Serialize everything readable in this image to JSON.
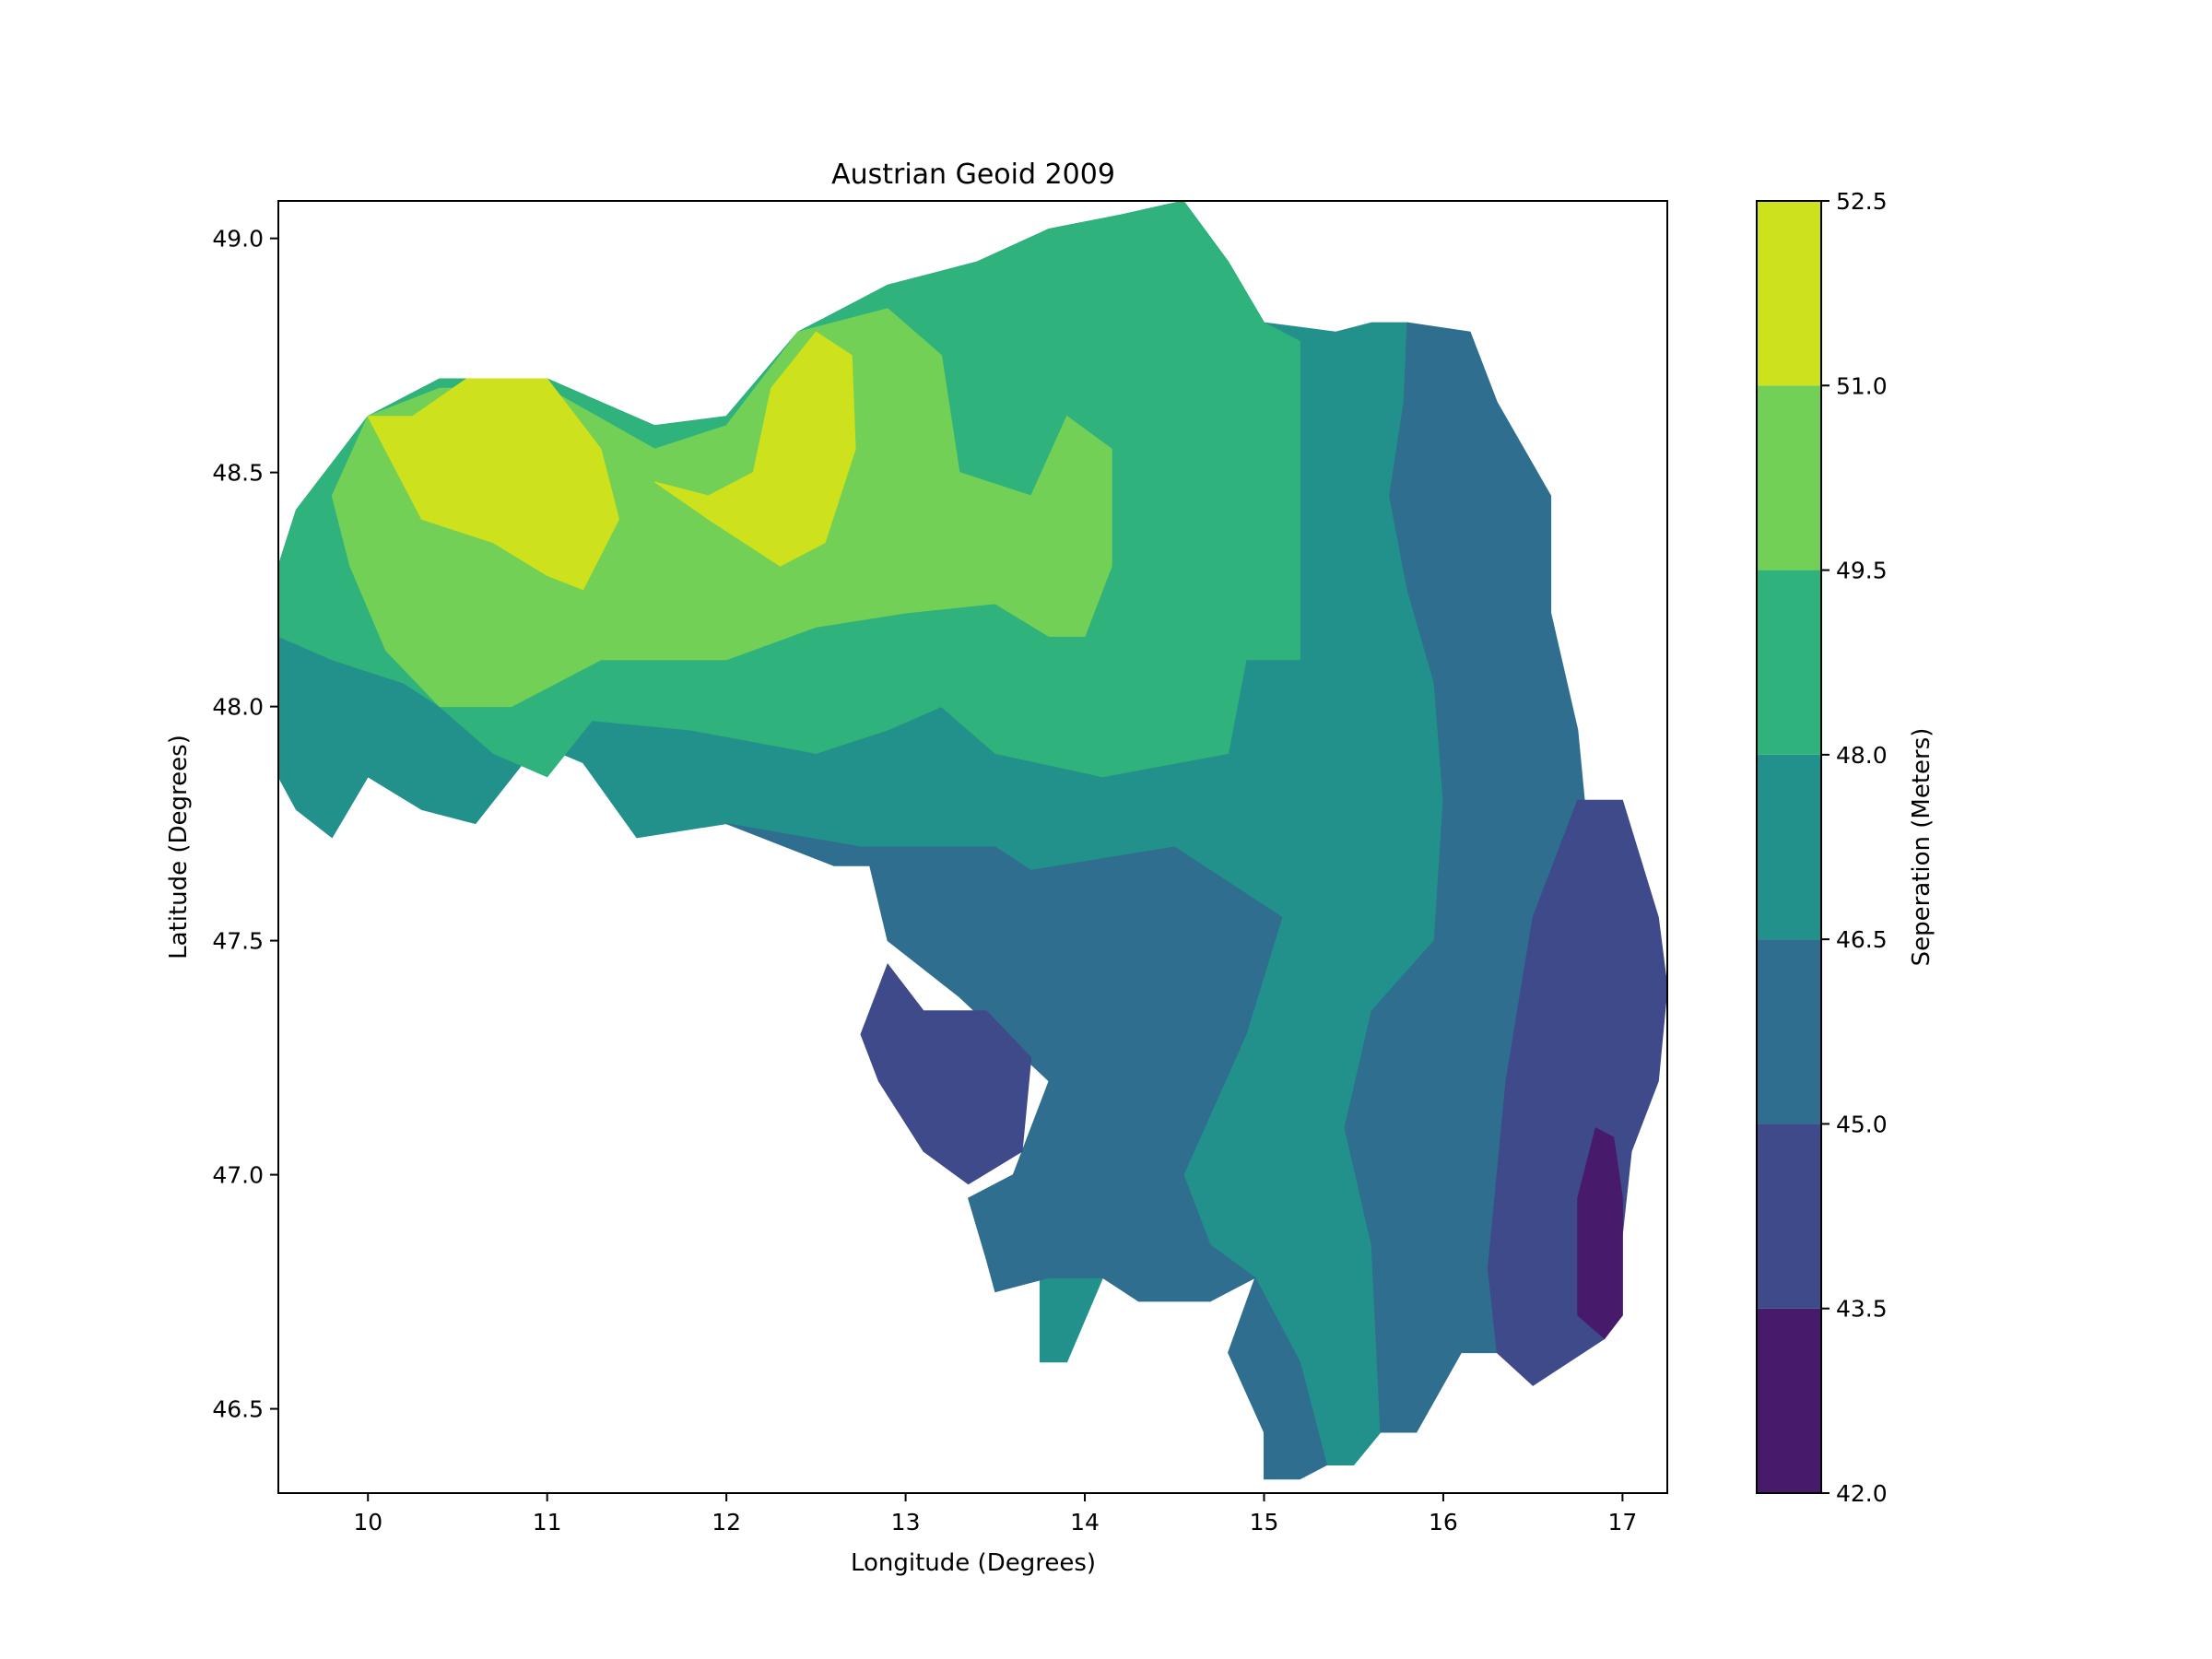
{
  "chart_data": {
    "type": "heatmap",
    "subtype": "filled-contour",
    "title": "Austrian Geoid 2009",
    "xlabel": "Longitude (Degrees)",
    "ylabel": "Latitude (Degrees)",
    "xlim": [
      9.5,
      17.25
    ],
    "ylim": [
      46.32,
      49.08
    ],
    "xticks": [
      "10",
      "11",
      "12",
      "13",
      "14",
      "15",
      "16",
      "17"
    ],
    "yticks": [
      "46.5",
      "47.0",
      "47.5",
      "48.0",
      "48.5",
      "49.0"
    ],
    "grid": false,
    "colorbar": {
      "label": "Seperation (Meters)",
      "ticks": [
        "42.0",
        "43.5",
        "45.0",
        "46.5",
        "48.0",
        "49.5",
        "51.0",
        "52.5"
      ],
      "levels": [
        42.0,
        43.5,
        45.0,
        46.5,
        48.0,
        49.5,
        51.0,
        52.5
      ],
      "colors": [
        "#481a6c",
        "#3e4a89",
        "#2f6e8e",
        "#23918b",
        "#2fb27b",
        "#73d056",
        "#cde11d"
      ]
    },
    "bands": [
      {
        "range": [
          46.5,
          48.0
        ],
        "color": "#23918b",
        "polygons": [
          [
            [
              9.5,
              48.3
            ],
            [
              9.6,
              48.42
            ],
            [
              9.8,
              48.52
            ],
            [
              10,
              48.62
            ],
            [
              10.4,
              48.7
            ],
            [
              11,
              48.7
            ],
            [
              11.6,
              48.6
            ],
            [
              12.0,
              48.62
            ],
            [
              12.4,
              48.8
            ],
            [
              12.9,
              48.9
            ],
            [
              13.4,
              48.95
            ],
            [
              13.8,
              49.02
            ],
            [
              14.2,
              49.05
            ],
            [
              14.55,
              49.08
            ],
            [
              14.8,
              48.95
            ],
            [
              15.0,
              48.82
            ],
            [
              15.4,
              48.8
            ],
            [
              15.6,
              48.82
            ],
            [
              15.8,
              48.82
            ],
            [
              15.78,
              48.65
            ],
            [
              15.7,
              48.45
            ],
            [
              15.8,
              48.25
            ],
            [
              15.95,
              48.05
            ],
            [
              16.0,
              47.8
            ],
            [
              15.95,
              47.5
            ],
            [
              15.6,
              47.35
            ],
            [
              15.45,
              47.1
            ],
            [
              15.6,
              46.85
            ],
            [
              15.65,
              46.45
            ],
            [
              15.5,
              46.38
            ],
            [
              15.35,
              46.38
            ],
            [
              15.2,
              46.6
            ],
            [
              14.95,
              46.78
            ],
            [
              14.7,
              46.73
            ],
            [
              14.3,
              46.73
            ],
            [
              14.1,
              46.78
            ],
            [
              13.9,
              46.6
            ],
            [
              13.75,
              46.6
            ],
            [
              13.75,
              46.78
            ],
            [
              13.95,
              46.85
            ],
            [
              14.3,
              46.85
            ],
            [
              14.55,
              47.0
            ],
            [
              14.9,
              47.3
            ],
            [
              15.1,
              47.55
            ],
            [
              14.5,
              47.7
            ],
            [
              13.7,
              47.65
            ],
            [
              13.5,
              47.7
            ],
            [
              12.75,
              47.7
            ],
            [
              12.0,
              47.75
            ],
            [
              11.5,
              47.72
            ],
            [
              11.2,
              47.88
            ],
            [
              10.95,
              47.92
            ],
            [
              10.6,
              47.75
            ],
            [
              10.3,
              47.78
            ],
            [
              10.0,
              47.85
            ],
            [
              9.8,
              47.72
            ],
            [
              9.6,
              47.78
            ],
            [
              9.5,
              47.85
            ]
          ]
        ]
      },
      {
        "range": [
          45.0,
          46.5
        ],
        "color": "#2f6e8e",
        "polygons": [
          [
            [
              15.8,
              48.82
            ],
            [
              16.15,
              48.8
            ],
            [
              16.3,
              48.65
            ],
            [
              16.6,
              48.45
            ],
            [
              16.6,
              48.2
            ],
            [
              16.75,
              47.95
            ],
            [
              16.8,
              47.75
            ],
            [
              16.5,
              47.55
            ],
            [
              16.35,
              47.2
            ],
            [
              16.25,
              46.8
            ],
            [
              16.3,
              46.62
            ],
            [
              16.1,
              46.62
            ],
            [
              15.85,
              46.45
            ],
            [
              15.65,
              46.45
            ],
            [
              15.6,
              46.85
            ],
            [
              15.45,
              47.1
            ],
            [
              15.6,
              47.35
            ],
            [
              15.95,
              47.5
            ],
            [
              16.0,
              47.8
            ],
            [
              15.95,
              48.05
            ],
            [
              15.8,
              48.25
            ],
            [
              15.7,
              48.45
            ],
            [
              15.78,
              48.65
            ]
          ],
          [
            [
              12.0,
              47.75
            ],
            [
              12.6,
              47.66
            ],
            [
              12.8,
              47.66
            ],
            [
              12.9,
              47.5
            ],
            [
              13.3,
              47.38
            ],
            [
              13.8,
              47.2
            ],
            [
              13.6,
              47.0
            ],
            [
              13.35,
              46.95
            ],
            [
              13.45,
              46.82
            ],
            [
              13.5,
              46.75
            ],
            [
              13.8,
              46.78
            ],
            [
              14.1,
              46.78
            ],
            [
              14.3,
              46.73
            ],
            [
              14.7,
              46.73
            ],
            [
              14.95,
              46.78
            ],
            [
              14.8,
              46.62
            ],
            [
              15.0,
              46.45
            ],
            [
              15.0,
              46.35
            ],
            [
              15.2,
              46.35
            ],
            [
              15.35,
              46.38
            ],
            [
              15.2,
              46.6
            ],
            [
              14.95,
              46.78
            ],
            [
              14.7,
              46.85
            ],
            [
              14.55,
              47.0
            ],
            [
              14.9,
              47.3
            ],
            [
              15.1,
              47.55
            ],
            [
              14.5,
              47.7
            ],
            [
              13.7,
              47.65
            ],
            [
              13.5,
              47.7
            ],
            [
              12.75,
              47.7
            ]
          ]
        ]
      },
      {
        "range": [
          43.5,
          45.0
        ],
        "color": "#3e4a89",
        "polygons": [
          [
            [
              16.75,
              47.8
            ],
            [
              17.0,
              47.8
            ],
            [
              17.2,
              47.55
            ],
            [
              17.25,
              47.4
            ],
            [
              17.2,
              47.2
            ],
            [
              17.05,
              47.05
            ],
            [
              16.95,
              46.7
            ],
            [
              16.9,
              46.65
            ],
            [
              16.5,
              46.55
            ],
            [
              16.3,
              46.62
            ],
            [
              16.25,
              46.8
            ],
            [
              16.35,
              47.2
            ],
            [
              16.5,
              47.55
            ]
          ],
          [
            [
              12.9,
              47.45
            ],
            [
              13.1,
              47.35
            ],
            [
              13.45,
              47.35
            ],
            [
              13.7,
              47.25
            ],
            [
              13.65,
              47.05
            ],
            [
              13.35,
              46.98
            ],
            [
              13.1,
              47.05
            ],
            [
              12.85,
              47.2
            ],
            [
              12.75,
              47.3
            ]
          ]
        ]
      },
      {
        "range": [
          42.0,
          43.5
        ],
        "color": "#481a6c",
        "polygons": [
          [
            [
              16.85,
              47.1
            ],
            [
              16.95,
              47.08
            ],
            [
              17.0,
              46.95
            ],
            [
              17.0,
              46.7
            ],
            [
              16.9,
              46.65
            ],
            [
              16.75,
              46.7
            ],
            [
              16.75,
              46.95
            ]
          ]
        ]
      },
      {
        "range": [
          48.0,
          49.5
        ],
        "color": "#2fb27b",
        "polygons": [
          [
            [
              9.5,
              48.3
            ],
            [
              9.6,
              48.42
            ],
            [
              9.8,
              48.52
            ],
            [
              10,
              48.62
            ],
            [
              10.4,
              48.7
            ],
            [
              11,
              48.7
            ],
            [
              11.6,
              48.6
            ],
            [
              12.0,
              48.62
            ],
            [
              12.4,
              48.8
            ],
            [
              12.9,
              48.9
            ],
            [
              13.4,
              48.95
            ],
            [
              13.8,
              49.02
            ],
            [
              14.2,
              49.05
            ],
            [
              14.55,
              49.08
            ],
            [
              14.8,
              48.95
            ],
            [
              15.0,
              48.82
            ],
            [
              15.2,
              48.78
            ],
            [
              15.2,
              48.55
            ],
            [
              15.2,
              48.3
            ],
            [
              15.2,
              48.1
            ],
            [
              14.9,
              48.1
            ],
            [
              14.8,
              47.9
            ],
            [
              14.1,
              47.85
            ],
            [
              13.5,
              47.9
            ],
            [
              13.2,
              48.0
            ],
            [
              12.9,
              47.95
            ],
            [
              12.5,
              47.9
            ],
            [
              11.8,
              47.95
            ],
            [
              11.25,
              47.97
            ],
            [
              11.0,
              47.85
            ],
            [
              10.7,
              47.9
            ],
            [
              10.4,
              48.0
            ],
            [
              10.2,
              48.05
            ],
            [
              9.8,
              48.1
            ],
            [
              9.5,
              48.15
            ]
          ]
        ]
      },
      {
        "range": [
          49.5,
          51.0
        ],
        "color": "#73d056",
        "polygons": [
          [
            [
              9.8,
              48.45
            ],
            [
              10.0,
              48.62
            ],
            [
              10.4,
              48.68
            ],
            [
              11.0,
              48.68
            ],
            [
              11.6,
              48.55
            ],
            [
              12.0,
              48.6
            ],
            [
              12.4,
              48.8
            ],
            [
              12.9,
              48.85
            ],
            [
              13.2,
              48.75
            ],
            [
              13.3,
              48.5
            ],
            [
              13.7,
              48.45
            ],
            [
              13.9,
              48.62
            ],
            [
              14.15,
              48.55
            ],
            [
              14.15,
              48.3
            ],
            [
              14.0,
              48.15
            ],
            [
              13.8,
              48.15
            ],
            [
              13.5,
              48.22
            ],
            [
              13.0,
              48.2
            ],
            [
              12.5,
              48.17
            ],
            [
              12.0,
              48.1
            ],
            [
              11.3,
              48.1
            ],
            [
              10.8,
              48.0
            ],
            [
              10.4,
              48.0
            ],
            [
              10.1,
              48.12
            ],
            [
              9.9,
              48.3
            ]
          ]
        ]
      },
      {
        "range": [
          51.0,
          52.5
        ],
        "color": "#cde11d",
        "polygons": [
          [
            [
              10.0,
              48.62
            ],
            [
              10.25,
              48.62
            ],
            [
              10.55,
              48.7
            ],
            [
              11.0,
              48.7
            ],
            [
              11.3,
              48.55
            ],
            [
              11.4,
              48.4
            ],
            [
              11.2,
              48.25
            ],
            [
              11.0,
              48.28
            ],
            [
              10.7,
              48.35
            ],
            [
              10.3,
              48.4
            ]
          ],
          [
            [
              11.6,
              48.48
            ],
            [
              11.9,
              48.45
            ],
            [
              12.15,
              48.5
            ],
            [
              12.25,
              48.68
            ],
            [
              12.5,
              48.8
            ],
            [
              12.7,
              48.75
            ],
            [
              12.72,
              48.55
            ],
            [
              12.55,
              48.35
            ],
            [
              12.3,
              48.3
            ],
            [
              11.9,
              48.4
            ]
          ]
        ]
      }
    ]
  }
}
